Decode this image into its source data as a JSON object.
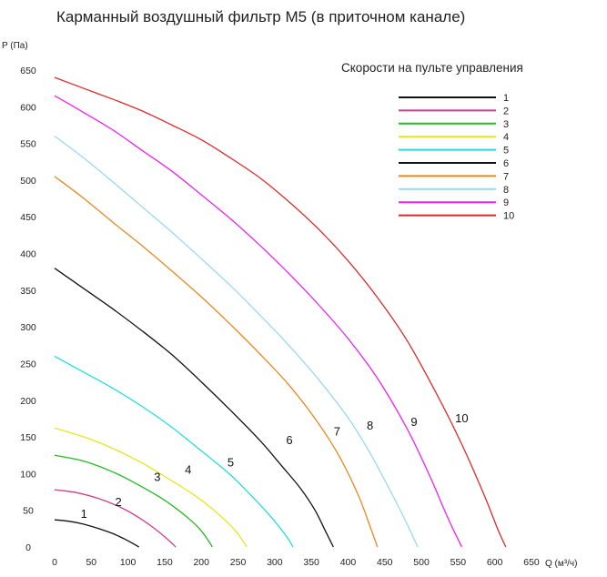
{
  "chart_data": {
    "type": "line",
    "title": "Карманный воздушный фильтр M5 (в приточном канале)",
    "ylabel": "P (Па)",
    "xlabel": "Q (м³/ч)",
    "xlim": [
      0,
      650
    ],
    "ylim": [
      0,
      650
    ],
    "x_ticks": [
      "0",
      "50",
      "100",
      "150",
      "200",
      "250",
      "300",
      "350",
      "400",
      "450",
      "500",
      "550",
      "600",
      "650"
    ],
    "y_ticks": [
      "0",
      "50",
      "100",
      "150",
      "200",
      "250",
      "300",
      "350",
      "400",
      "450",
      "500",
      "550",
      "600",
      "650"
    ],
    "legend": {
      "title": "Скорости на пульте управления",
      "placement": "top-right"
    },
    "series": [
      {
        "name": "1",
        "color": "#111111",
        "label_at": [
          40,
          40
        ],
        "points": [
          [
            0,
            37
          ],
          [
            20,
            35
          ],
          [
            40,
            31
          ],
          [
            60,
            25
          ],
          [
            80,
            18
          ],
          [
            95,
            11
          ],
          [
            108,
            4
          ],
          [
            115,
            0
          ]
        ]
      },
      {
        "name": "2",
        "color": "#cc3f8f",
        "label_at": [
          87,
          56
        ],
        "points": [
          [
            0,
            78
          ],
          [
            30,
            74
          ],
          [
            60,
            66
          ],
          [
            90,
            54
          ],
          [
            115,
            40
          ],
          [
            135,
            26
          ],
          [
            150,
            14
          ],
          [
            160,
            5
          ],
          [
            165,
            0
          ]
        ]
      },
      {
        "name": "3",
        "color": "#22bb22",
        "label_at": [
          140,
          90
        ],
        "points": [
          [
            0,
            125
          ],
          [
            40,
            117
          ],
          [
            80,
            102
          ],
          [
            110,
            87
          ],
          [
            140,
            70
          ],
          [
            165,
            53
          ],
          [
            185,
            37
          ],
          [
            200,
            22
          ],
          [
            210,
            8
          ],
          [
            215,
            0
          ]
        ]
      },
      {
        "name": "4",
        "color": "#e6e61e",
        "label_at": [
          182,
          100
        ],
        "points": [
          [
            0,
            162
          ],
          [
            40,
            150
          ],
          [
            80,
            134
          ],
          [
            120,
            114
          ],
          [
            160,
            90
          ],
          [
            190,
            71
          ],
          [
            215,
            52
          ],
          [
            235,
            34
          ],
          [
            250,
            18
          ],
          [
            262,
            0
          ]
        ]
      },
      {
        "name": "5",
        "color": "#22dddd",
        "label_at": [
          240,
          110
        ],
        "points": [
          [
            0,
            260
          ],
          [
            40,
            238
          ],
          [
            80,
            216
          ],
          [
            120,
            191
          ],
          [
            160,
            163
          ],
          [
            200,
            131
          ],
          [
            240,
            98
          ],
          [
            270,
            68
          ],
          [
            295,
            41
          ],
          [
            315,
            16
          ],
          [
            325,
            0
          ]
        ]
      },
      {
        "name": "6",
        "color": "#111111",
        "label_at": [
          320,
          140
        ],
        "points": [
          [
            0,
            380
          ],
          [
            40,
            352
          ],
          [
            80,
            324
          ],
          [
            120,
            294
          ],
          [
            160,
            262
          ],
          [
            200,
            225
          ],
          [
            240,
            186
          ],
          [
            280,
            145
          ],
          [
            310,
            110
          ],
          [
            335,
            80
          ],
          [
            355,
            50
          ],
          [
            370,
            20
          ],
          [
            380,
            0
          ]
        ]
      },
      {
        "name": "7",
        "color": "#e8891e",
        "label_at": [
          385,
          152
        ],
        "points": [
          [
            0,
            505
          ],
          [
            40,
            475
          ],
          [
            80,
            442
          ],
          [
            120,
            410
          ],
          [
            160,
            376
          ],
          [
            200,
            341
          ],
          [
            240,
            303
          ],
          [
            280,
            263
          ],
          [
            320,
            220
          ],
          [
            360,
            168
          ],
          [
            390,
            120
          ],
          [
            415,
            68
          ],
          [
            430,
            28
          ],
          [
            440,
            0
          ]
        ]
      },
      {
        "name": "8",
        "color": "#99d9f2",
        "label_at": [
          430,
          160
        ],
        "points": [
          [
            0,
            560
          ],
          [
            40,
            530
          ],
          [
            80,
            497
          ],
          [
            120,
            463
          ],
          [
            160,
            429
          ],
          [
            200,
            393
          ],
          [
            240,
            356
          ],
          [
            280,
            316
          ],
          [
            320,
            274
          ],
          [
            360,
            228
          ],
          [
            400,
            176
          ],
          [
            430,
            128
          ],
          [
            460,
            72
          ],
          [
            480,
            32
          ],
          [
            495,
            0
          ]
        ]
      },
      {
        "name": "9",
        "color": "#ee22ee",
        "label_at": [
          490,
          165
        ],
        "points": [
          [
            0,
            615
          ],
          [
            40,
            592
          ],
          [
            80,
            568
          ],
          [
            120,
            540
          ],
          [
            160,
            512
          ],
          [
            200,
            480
          ],
          [
            240,
            447
          ],
          [
            280,
            411
          ],
          [
            320,
            372
          ],
          [
            360,
            330
          ],
          [
            400,
            284
          ],
          [
            440,
            230
          ],
          [
            480,
            162
          ],
          [
            510,
            100
          ],
          [
            535,
            42
          ],
          [
            555,
            0
          ]
        ]
      },
      {
        "name": "10",
        "color": "#dd2a2a",
        "label_at": [
          555,
          170
        ],
        "points": [
          [
            0,
            640
          ],
          [
            40,
            625
          ],
          [
            80,
            610
          ],
          [
            120,
            594
          ],
          [
            160,
            575
          ],
          [
            200,
            555
          ],
          [
            240,
            530
          ],
          [
            280,
            503
          ],
          [
            320,
            470
          ],
          [
            360,
            433
          ],
          [
            400,
            390
          ],
          [
            440,
            340
          ],
          [
            480,
            282
          ],
          [
            520,
            210
          ],
          [
            555,
            140
          ],
          [
            585,
            72
          ],
          [
            605,
            22
          ],
          [
            615,
            0
          ]
        ]
      }
    ]
  }
}
